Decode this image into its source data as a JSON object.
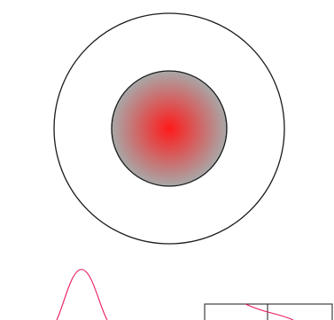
{
  "diagram": {
    "stroke_color": "#1a1a1a",
    "gradient": {
      "center_color": "#ff1a1a",
      "edge_color": "#a8a8a8"
    },
    "bell_curve_color": "#e8175d",
    "inset_curve_color": "#e8175d"
  }
}
